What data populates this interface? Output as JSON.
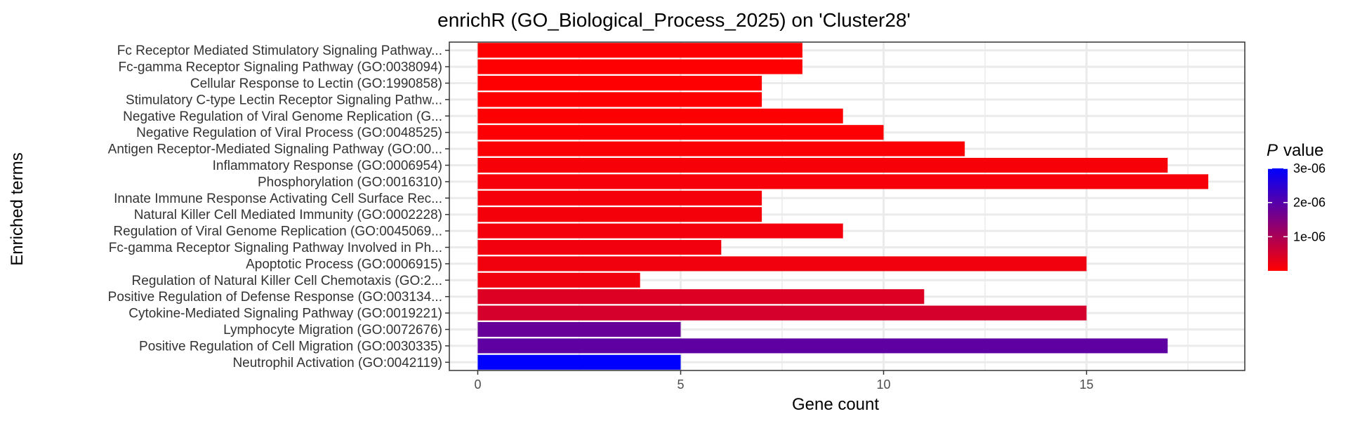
{
  "chart_data": {
    "type": "bar",
    "orientation": "horizontal",
    "title": "enrichR (GO_Biological_Process_2025) on 'Cluster28'",
    "xlabel": "Gene count",
    "ylabel": "Enriched terms",
    "xlim": [
      -0.7,
      18.9
    ],
    "xticks": [
      0,
      5,
      10,
      15
    ],
    "xtick_labels": [
      "0",
      "5",
      "10",
      "15"
    ],
    "grid": true,
    "categories": [
      "Fc Receptor Mediated Stimulatory Signaling Pathway...",
      "Fc-gamma Receptor Signaling Pathway (GO:0038094)",
      "Cellular Response to Lectin (GO:1990858)",
      "Stimulatory C-type Lectin Receptor Signaling Pathw...",
      "Negative Regulation of Viral Genome Replication (G...",
      "Negative Regulation of Viral Process (GO:0048525)",
      "Antigen Receptor-Mediated Signaling Pathway (GO:00...",
      "Inflammatory Response (GO:0006954)",
      "Phosphorylation (GO:0016310)",
      "Innate Immune Response Activating Cell Surface Rec...",
      "Natural Killer Cell Mediated Immunity (GO:0002228)",
      "Regulation of Viral Genome Replication (GO:0045069...",
      "Fc-gamma Receptor Signaling Pathway Involved in Ph...",
      "Apoptotic Process (GO:0006915)",
      "Regulation of Natural Killer Cell Chemotaxis (GO:2...",
      "Positive Regulation of Defense Response (GO:003134...",
      "Cytokine-Mediated Signaling Pathway (GO:0019221)",
      "Lymphocyte Migration (GO:0072676)",
      "Positive Regulation of Cell Migration (GO:0030335)",
      "Neutrophil Activation (GO:0042119)"
    ],
    "values": [
      8,
      8,
      7,
      7,
      9,
      10,
      12,
      17,
      18,
      7,
      7,
      9,
      6,
      15,
      4,
      11,
      15,
      5,
      17,
      5
    ],
    "p_values": [
      1e-08,
      1e-08,
      1.5e-08,
      1.5e-08,
      2e-08,
      3e-08,
      5e-08,
      8e-08,
      1e-07,
      1.2e-07,
      1.3e-07,
      1.4e-07,
      1.5e-07,
      1.6e-07,
      1.7e-07,
      4e-07,
      5e-07,
      1.8e-06,
      1.9e-06,
      3e-06
    ],
    "legend": {
      "title_italic": "P",
      "title_rest": "value",
      "position": "right",
      "range": [
        0,
        3e-06
      ],
      "ticks": [
        3e-06,
        2e-06,
        1e-06
      ],
      "tick_labels": [
        "3e-06",
        "2e-06",
        "1e-06"
      ],
      "low_color": "#ff0000",
      "high_color": "#0000ff"
    }
  }
}
